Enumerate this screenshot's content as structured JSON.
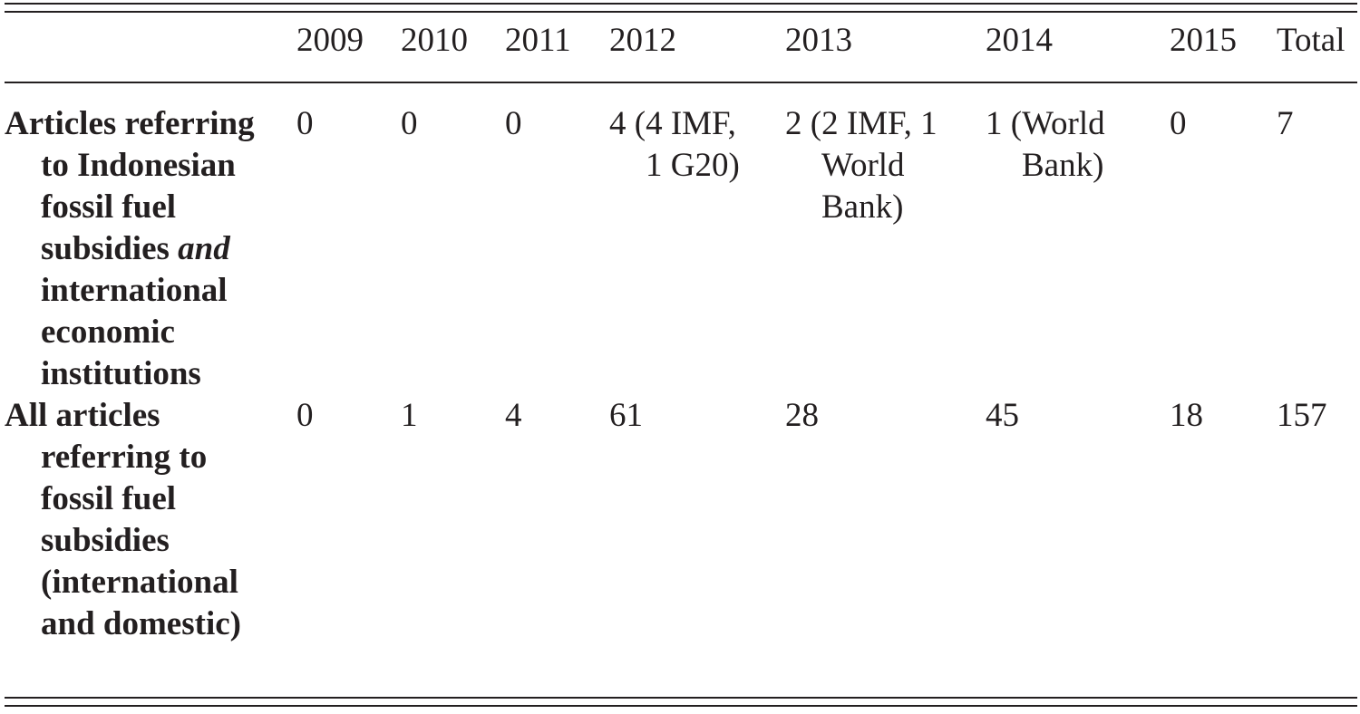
{
  "table": {
    "header": [
      "2009",
      "2010",
      "2011",
      "2012",
      "2013",
      "2014",
      "2015",
      "Total"
    ],
    "rows": [
      {
        "label_parts": [
          "Articles referring to Indonesian fossil fuel subsidies",
          "and",
          "international economic institutions"
        ],
        "cells": [
          0,
          0,
          0,
          "4 (4 IMF, 1 G20)",
          "2 (2 IMF, 1 World Bank)",
          "1 (World Bank)",
          0,
          7
        ]
      },
      {
        "label_parts": [
          "All articles referring to fossil fuel subsidies (international and domestic)"
        ],
        "cells": [
          0,
          1,
          4,
          61,
          28,
          45,
          18,
          157
        ]
      }
    ]
  }
}
